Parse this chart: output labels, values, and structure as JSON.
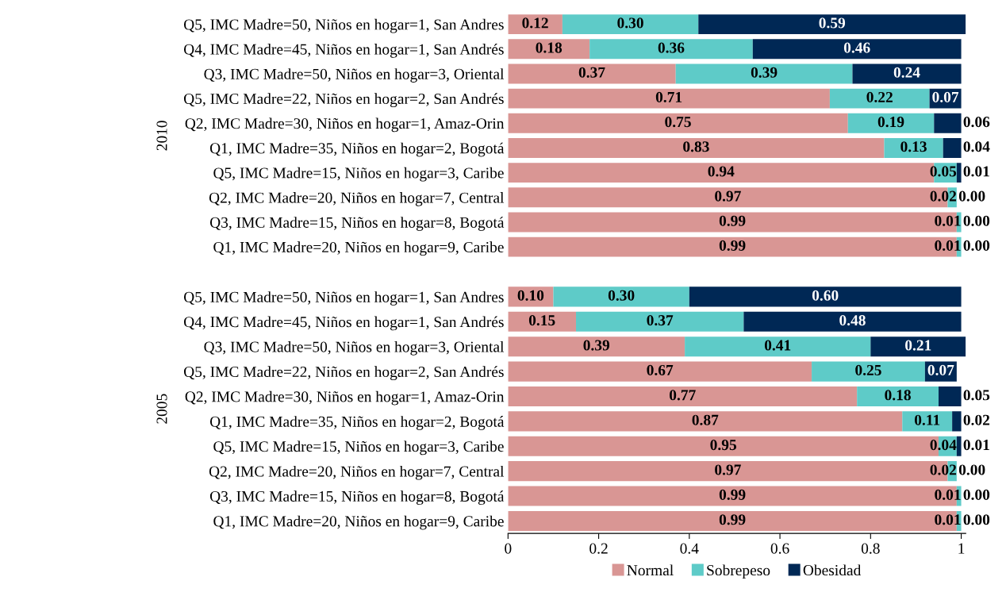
{
  "chart_data": [
    {
      "type": "bar",
      "orientation": "horizontal",
      "stacked": true,
      "ylabel": "2010",
      "tick_labels": "y",
      "grid": false,
      "legend": false,
      "xlim": [
        0,
        1.01
      ],
      "categories": [
        "Q5, IMC Madre=50, Niños en hogar=1, San Andres",
        "Q4, IMC Madre=45, Niños en hogar=1, San Andrés",
        "Q3, IMC Madre=50, Niños en hogar=3, Oriental",
        "Q5, IMC Madre=22, Niños en hogar=2, San Andrés",
        "Q2, IMC Madre=30, Niños en hogar=1, Amaz-Orin",
        "Q1, IMC Madre=35, Niños en hogar=2, Bogotá",
        "Q5, IMC Madre=15, Niños en hogar=3, Caribe",
        "Q2, IMC Madre=20, Niños en hogar=7, Central",
        "Q3, IMC Madre=15, Niños en hogar=8, Bogotá",
        "Q1, IMC Madre=20, Niños en hogar=9, Caribe"
      ],
      "series": [
        {
          "color": "#d99694",
          "values": [
            0.12,
            0.18,
            0.37,
            0.71,
            0.75,
            0.83,
            0.94,
            0.97,
            0.99,
            0.99
          ],
          "value_labels": [
            "0.12",
            "0.18",
            "0.37",
            "0.71",
            "0.75",
            "0.83",
            "0.94",
            "0.97",
            "0.99",
            "0.99"
          ]
        },
        {
          "color": "#5ecbc8",
          "values": [
            0.3,
            0.36,
            0.39,
            0.22,
            0.19,
            0.13,
            0.05,
            0.02,
            0.01,
            0.01
          ],
          "value_labels": [
            "0.30",
            "0.36",
            "0.39",
            "0.22",
            "0.19",
            "0.13",
            "0.05",
            "0.02",
            "0.01",
            "0.01"
          ]
        },
        {
          "color": "#002855",
          "values": [
            0.59,
            0.46,
            0.24,
            0.07,
            0.06,
            0.04,
            0.01,
            0.0,
            0.0,
            0.0
          ],
          "value_labels": [
            "0.59",
            "0.46",
            "0.24",
            "0.07",
            "0.06",
            "0.04",
            "0.01",
            "0.00",
            "0.00",
            "0.00"
          ]
        }
      ]
    },
    {
      "type": "bar",
      "orientation": "horizontal",
      "stacked": true,
      "ylabel": "2005",
      "grid": false,
      "legend": "bottom",
      "xlim": [
        0,
        1.01
      ],
      "xticks": [
        0,
        0.2,
        0.4,
        0.6,
        0.8,
        1
      ],
      "categories": [
        "Q5, IMC Madre=50, Niños en hogar=1, San Andres",
        "Q4, IMC Madre=45, Niños en hogar=1, San Andrés",
        "Q3, IMC Madre=50, Niños en hogar=3, Oriental",
        "Q5, IMC Madre=22, Niños en hogar=2, San Andrés",
        "Q2, IMC Madre=30, Niños en hogar=1, Amaz-Orin",
        "Q1, IMC Madre=35, Niños en hogar=2, Bogotá",
        "Q5, IMC Madre=15, Niños en hogar=3, Caribe",
        "Q2, IMC Madre=20, Niños en hogar=7, Central",
        "Q3, IMC Madre=15, Niños en hogar=8, Bogotá",
        "Q1, IMC Madre=20, Niños en hogar=9, Caribe"
      ],
      "series": [
        {
          "name": "Normal",
          "color": "#d99694",
          "values": [
            0.1,
            0.15,
            0.39,
            0.67,
            0.77,
            0.87,
            0.95,
            0.97,
            0.99,
            0.99
          ],
          "value_labels": [
            "0.10",
            "0.15",
            "0.39",
            "0.67",
            "0.77",
            "0.87",
            "0.95",
            "0.97",
            "0.99",
            "0.99"
          ]
        },
        {
          "name": "Sobrepeso",
          "color": "#5ecbc8",
          "values": [
            0.3,
            0.37,
            0.41,
            0.25,
            0.18,
            0.11,
            0.04,
            0.02,
            0.01,
            0.01
          ],
          "value_labels": [
            "0.30",
            "0.37",
            "0.41",
            "0.25",
            "0.18",
            "0.11",
            "0.04",
            "0.02",
            "0.01",
            "0.01"
          ]
        },
        {
          "name": "Obesidad",
          "color": "#002855",
          "values": [
            0.6,
            0.48,
            0.21,
            0.07,
            0.05,
            0.02,
            0.01,
            0.0,
            0.0,
            0.0
          ],
          "value_labels": [
            "0.60",
            "0.48",
            "0.21",
            "0.07",
            "0.05",
            "0.02",
            "0.01",
            "0.00",
            "0.00",
            "0.00"
          ]
        }
      ]
    }
  ]
}
